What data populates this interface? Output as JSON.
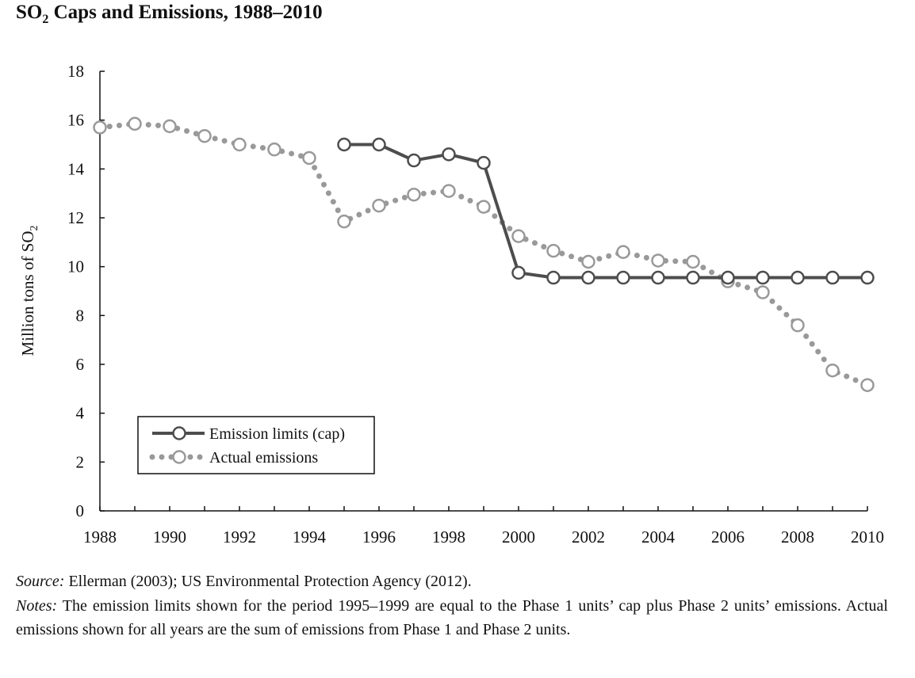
{
  "title": {
    "prefix": "SO",
    "subscript": "2",
    "suffix": " Caps and Emissions, 1988–2010"
  },
  "chart_data": {
    "type": "line",
    "title": "SO₂ Caps and Emissions, 1988–2010",
    "xlabel": "",
    "ylabel": "Million tons of SO₂",
    "ylabel_prefix": "Million tons of SO",
    "ylabel_subscript": "2",
    "xlim": [
      1988,
      2010
    ],
    "ylim": [
      0,
      18
    ],
    "x_ticks": [
      1988,
      1990,
      1992,
      1994,
      1996,
      1998,
      2000,
      2002,
      2004,
      2006,
      2008,
      2010
    ],
    "y_ticks": [
      0,
      2,
      4,
      6,
      8,
      10,
      12,
      14,
      16,
      18
    ],
    "grid": false,
    "legend_position": "bottom-left",
    "series": [
      {
        "name": "Emission limits (cap)",
        "style": "solid",
        "color": "#4d4d4d",
        "x": [
          1995,
          1996,
          1997,
          1998,
          1999,
          2000,
          2001,
          2002,
          2003,
          2004,
          2005,
          2006,
          2007,
          2008,
          2009,
          2010
        ],
        "values": [
          15.0,
          15.0,
          14.35,
          14.6,
          14.25,
          9.75,
          9.55,
          9.55,
          9.55,
          9.55,
          9.55,
          9.55,
          9.55,
          9.55,
          9.55,
          9.55
        ]
      },
      {
        "name": "Actual emissions",
        "style": "dotted",
        "color": "#999999",
        "x": [
          1988,
          1989,
          1990,
          1991,
          1992,
          1993,
          1994,
          1995,
          1996,
          1997,
          1998,
          1999,
          2000,
          2001,
          2002,
          2003,
          2004,
          2005,
          2006,
          2007,
          2008,
          2009,
          2010
        ],
        "values": [
          15.7,
          15.85,
          15.75,
          15.35,
          15.0,
          14.8,
          14.45,
          11.85,
          12.5,
          12.95,
          13.1,
          12.45,
          11.25,
          10.65,
          10.2,
          10.6,
          10.25,
          10.2,
          9.4,
          8.95,
          7.6,
          5.75,
          5.15
        ]
      }
    ]
  },
  "footer": {
    "source_label": "Source:",
    "source_text": " Ellerman (2003); US Environmental Protection Agency (2012).",
    "notes_label": "Notes:",
    "notes_text": " The emission limits shown for the period 1995–1999 are equal to the Phase 1 units’ cap plus Phase 2 units’ emissions. Actual emissions shown for all years are the sum of emissions from Phase 1 and Phase 2 units."
  }
}
